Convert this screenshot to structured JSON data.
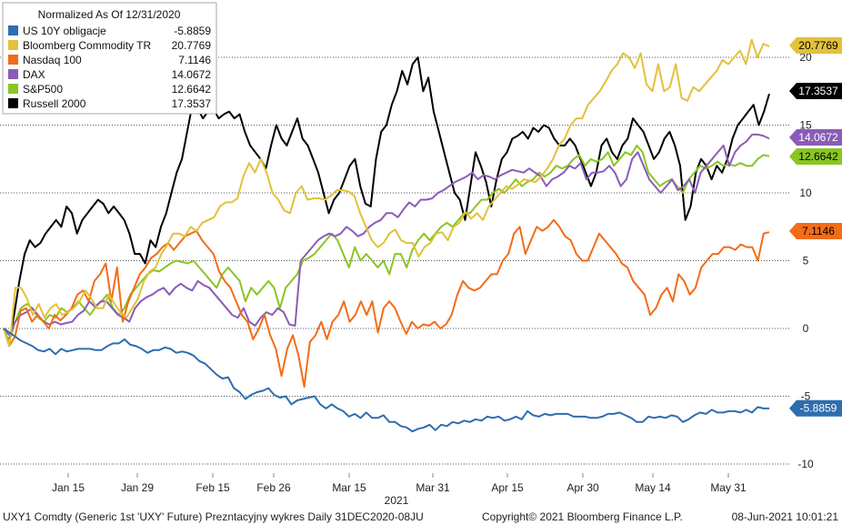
{
  "chart_data": {
    "type": "line",
    "title": "Normalized As Of 12/31/2020",
    "year_label": "2021",
    "x_tick_labels": [
      "Jan 15",
      "Jan 29",
      "Feb 15",
      "Feb 26",
      "Mar 15",
      "Mar 31",
      "Apr 15",
      "Apr 30",
      "May 14",
      "May 31"
    ],
    "y_ticks": [
      20,
      15,
      10,
      5,
      0,
      -5,
      -10
    ],
    "ylim": [
      -10.5,
      22.5
    ],
    "grid": true,
    "legend_position": "top-left",
    "series": [
      {
        "name": "US 10Y obligacje",
        "last": "-5.8859",
        "color": "#2e6db0",
        "tag_text_color": "#ffffff",
        "values": [
          0,
          -0.3,
          -0.6,
          -0.9,
          -1.1,
          -1.3,
          -1.6,
          -1.7,
          -1.5,
          -1.9,
          -1.5,
          -1.7,
          -1.6,
          -1.5,
          -1.5,
          -1.5,
          -1.6,
          -1.6,
          -1.3,
          -1.1,
          -1.1,
          -0.8,
          -1.2,
          -1.3,
          -1.5,
          -1.8,
          -1.6,
          -1.6,
          -1.4,
          -1.5,
          -1.8,
          -1.7,
          -1.8,
          -2.0,
          -2.4,
          -2.6,
          -3.0,
          -3.4,
          -3.7,
          -3.6,
          -4.4,
          -4.7,
          -5.2,
          -4.9,
          -4.7,
          -4.6,
          -4.4,
          -4.9,
          -5.1,
          -5.0,
          -5.6,
          -5.3,
          -5.2,
          -5.1,
          -5.0,
          -5.6,
          -5.9,
          -5.6,
          -5.9,
          -6.1,
          -6.5,
          -6.3,
          -6.6,
          -6.2,
          -6.6,
          -6.6,
          -6.4,
          -6.9,
          -6.9,
          -7.2,
          -7.3,
          -7.6,
          -7.4,
          -7.3,
          -7.1,
          -7.5,
          -7.1,
          -7.2,
          -6.9,
          -7.0,
          -6.8,
          -6.9,
          -6.7,
          -6.8,
          -6.5,
          -6.6,
          -6.5,
          -6.8,
          -6.7,
          -6.5,
          -6.7,
          -6.1,
          -6.4,
          -6.5,
          -6.3,
          -6.4,
          -6.3,
          -6.3,
          -6.3,
          -6.5,
          -6.5,
          -6.5,
          -6.6,
          -6.6,
          -6.5,
          -6.3,
          -6.3,
          -6.2,
          -6.4,
          -6.6,
          -6.9,
          -6.9,
          -6.5,
          -6.6,
          -6.5,
          -6.6,
          -6.4,
          -6.5,
          -6.9,
          -6.7,
          -6.4,
          -6.2,
          -6.3,
          -6.0,
          -6.2,
          -6.2,
          -6.1,
          -6.1,
          -6.2,
          -6.0,
          -6.2,
          -5.8,
          -5.9,
          -5.9
        ]
      },
      {
        "name": "Bloomberg Commodity TR",
        "last": "20.7769",
        "color": "#e2c13b",
        "tag_text_color": "#000000",
        "values": [
          0,
          -1.3,
          3.0,
          3.0,
          2.2,
          1.0,
          1.8,
          0.8,
          1.5,
          1.8,
          1.0,
          1.2,
          1.5,
          2.0,
          2.8,
          2.2,
          1.5,
          1.5,
          2.5,
          1.8,
          1.2,
          0.8,
          1.5,
          2.2,
          3.5,
          4.2,
          4.5,
          5.5,
          6.2,
          7.0,
          7.0,
          6.8,
          7.5,
          7.2,
          7.8,
          8.0,
          8.2,
          9.0,
          9.3,
          9.3,
          9.6,
          11.2,
          12.2,
          11.5,
          12.5,
          11.5,
          10.0,
          9.5,
          8.7,
          8.5,
          10.0,
          10.5,
          9.5,
          9.6,
          9.6,
          9.5,
          9.8,
          10.2,
          10.2,
          10.1,
          9.8,
          8.5,
          7.5,
          6.5,
          6.0,
          6.3,
          7.0,
          7.3,
          6.5,
          6.3,
          6.3,
          5.3,
          6.0,
          6.3,
          7.0,
          7.1,
          6.5,
          7.5,
          7.8,
          8.6,
          8.1,
          8.5,
          8.0,
          9.0,
          9.5,
          10.0,
          10.5,
          10.3,
          10.6,
          11.0,
          10.9,
          10.8,
          11.2,
          11.8,
          12.5,
          13.5,
          14.0,
          15.0,
          15.5,
          15.5,
          16.5,
          17.0,
          17.5,
          18.2,
          19.0,
          19.5,
          20.3,
          20.0,
          19.2,
          20.3,
          18.0,
          17.5,
          19.5,
          17.5,
          17.8,
          19.5,
          17.0,
          16.8,
          17.8,
          17.5,
          18.0,
          18.5,
          19.0,
          19.8,
          19.5,
          20.0,
          20.5,
          19.5,
          21.3,
          20.0,
          21.0,
          20.8
        ]
      },
      {
        "name": "Nasdaq 100",
        "last": "7.1146",
        "color": "#f36c17",
        "tag_text_color": "#000000",
        "values": [
          0,
          -1.3,
          -0.6,
          1.3,
          1.5,
          0.5,
          1.0,
          0.5,
          0.0,
          1.0,
          0.6,
          1.0,
          1.5,
          2.5,
          2.8,
          2.0,
          3.5,
          4.0,
          4.8,
          2.0,
          4.5,
          0.5,
          2.0,
          3.0,
          4.0,
          4.5,
          5.2,
          5.5,
          6.0,
          6.3,
          5.8,
          6.3,
          6.8,
          7.0,
          7.2,
          6.5,
          6.0,
          5.5,
          4.2,
          3.5,
          3.0,
          2.0,
          1.0,
          0.5,
          -0.8,
          0.0,
          1.0,
          -0.5,
          -1.5,
          -3.5,
          -1.5,
          -0.5,
          -2.0,
          -4.3,
          -1.0,
          -0.5,
          0.5,
          -0.8,
          0.5,
          1.0,
          2.0,
          0.5,
          1.0,
          2.0,
          1.0,
          2.0,
          -0.3,
          1.5,
          2.0,
          1.5,
          0.5,
          -0.4,
          0.5,
          0.0,
          0.3,
          0.2,
          0.5,
          0.0,
          0.3,
          1.0,
          2.5,
          3.5,
          3.0,
          2.8,
          3.0,
          3.5,
          4.0,
          4.0,
          5.0,
          5.5,
          7.0,
          7.5,
          5.5,
          6.5,
          7.5,
          7.2,
          7.5,
          8.0,
          7.5,
          6.8,
          6.5,
          5.5,
          5.0,
          5.0,
          6.0,
          7.0,
          6.5,
          6.0,
          5.5,
          4.8,
          4.5,
          3.5,
          3.0,
          2.5,
          1.0,
          1.5,
          2.5,
          3.0,
          2.0,
          4.0,
          3.5,
          2.5,
          3.0,
          4.5,
          5.0,
          5.5,
          5.5,
          6.0,
          6.0,
          5.8,
          6.2,
          6.0,
          6.0,
          5.0,
          7.0,
          7.1
        ]
      },
      {
        "name": "DAX",
        "last": "14.0672",
        "color": "#8a5cb8",
        "tag_text_color": "#ffffff",
        "values": [
          0,
          -0.5,
          0.5,
          1.0,
          1.2,
          1.5,
          1.0,
          0.5,
          0.3,
          0.5,
          0.3,
          0.4,
          0.5,
          1.0,
          1.3,
          2.0,
          1.6,
          2.0,
          2.0,
          1.5,
          1.0,
          0.8,
          0.5,
          1.5,
          2.0,
          2.3,
          2.5,
          2.8,
          3.0,
          2.5,
          3.0,
          3.3,
          3.0,
          2.8,
          3.5,
          3.2,
          3.0,
          2.5,
          2.0,
          1.5,
          1.0,
          0.8,
          1.5,
          0.5,
          0.2,
          0.8,
          1.2,
          1.0,
          1.5,
          1.2,
          0.3,
          0.2,
          5.0,
          5.5,
          6.0,
          6.5,
          6.8,
          7.0,
          6.8,
          7.0,
          7.5,
          7.2,
          6.8,
          7.0,
          7.5,
          7.8,
          8.0,
          8.5,
          8.5,
          8.2,
          8.8,
          9.3,
          9.0,
          9.5,
          9.5,
          9.6,
          10.0,
          10.2,
          10.5,
          10.8,
          11.0,
          11.2,
          11.5,
          11.0,
          11.3,
          11.2,
          11.0,
          11.3,
          11.5,
          11.7,
          11.6,
          11.5,
          11.8,
          11.5,
          11.2,
          10.5,
          11.0,
          11.2,
          11.5,
          12.0,
          11.8,
          12.2,
          11.0,
          11.5,
          11.5,
          11.6,
          12.0,
          11.5,
          10.5,
          11.0,
          12.5,
          13.0,
          12.0,
          11.0,
          10.5,
          10.0,
          10.5,
          11.0,
          10.2,
          10.5,
          11.0,
          10.0,
          11.5,
          12.0,
          12.5,
          13.0,
          13.5,
          12.0,
          13.0,
          13.5,
          13.8,
          14.3,
          14.3,
          14.2,
          14.0
        ]
      },
      {
        "name": "S&P500",
        "last": "12.6642",
        "color": "#8ac522",
        "tag_text_color": "#000000",
        "values": [
          0,
          -1.0,
          0.5,
          1.5,
          1.8,
          1.5,
          0.8,
          0.5,
          1.0,
          0.8,
          1.5,
          1.2,
          1.5,
          2.0,
          1.5,
          1.0,
          1.6,
          2.0,
          2.5,
          1.5,
          1.0,
          1.5,
          2.5,
          3.0,
          3.5,
          4.0,
          4.3,
          4.2,
          4.5,
          4.8,
          5.0,
          4.9,
          4.8,
          5.0,
          4.5,
          4.0,
          3.5,
          3.0,
          4.0,
          4.5,
          4.0,
          3.5,
          2.0,
          3.0,
          2.5,
          3.0,
          3.5,
          3.0,
          1.5,
          3.0,
          3.5,
          4.0,
          5.0,
          5.2,
          5.5,
          6.0,
          6.5,
          7.0,
          6.5,
          5.5,
          4.5,
          6.0,
          5.0,
          5.5,
          5.0,
          4.5,
          5.0,
          4.0,
          5.5,
          5.5,
          4.5,
          5.8,
          6.5,
          7.0,
          6.5,
          7.0,
          7.5,
          7.8,
          7.5,
          8.0,
          8.5,
          8.5,
          9.0,
          9.5,
          9.5,
          10.0,
          10.3,
          10.0,
          10.5,
          11.0,
          10.5,
          10.8,
          11.0,
          11.5,
          11.2,
          11.5,
          12.0,
          11.8,
          12.0,
          12.5,
          12.8,
          12.0,
          12.5,
          12.3,
          12.5,
          13.0,
          12.0,
          12.5,
          13.0,
          12.8,
          13.5,
          13.0,
          11.5,
          11.0,
          10.5,
          10.8,
          11.0,
          10.5,
          10.0,
          11.0,
          11.5,
          12.0,
          11.8,
          12.0,
          12.3,
          12.0,
          12.1,
          12.0,
          12.2,
          12.0,
          12.0,
          12.5,
          12.8,
          12.7
        ]
      },
      {
        "name": "Russell 2000",
        "last": "17.3537",
        "color": "#000000",
        "tag_text_color": "#ffffff",
        "values": [
          0,
          -1.0,
          1.0,
          3.5,
          5.5,
          6.5,
          6.0,
          6.3,
          7.0,
          7.5,
          8.0,
          7.5,
          9.0,
          8.5,
          7.0,
          8.0,
          8.5,
          9.0,
          9.5,
          9.2,
          8.5,
          9.0,
          8.5,
          8.0,
          7.0,
          5.5,
          5.5,
          4.8,
          6.5,
          6.0,
          7.5,
          8.5,
          10.0,
          11.5,
          12.5,
          14.5,
          16.5,
          16.2,
          15.5,
          16.0,
          16.2,
          15.5,
          15.8,
          16.0,
          15.5,
          15.8,
          14.5,
          13.5,
          13.0,
          12.5,
          11.8,
          13.5,
          15.0,
          14.0,
          13.5,
          14.5,
          15.5,
          14.0,
          13.5,
          12.5,
          11.5,
          10.0,
          8.5,
          9.5,
          10.0,
          11.0,
          12.0,
          12.5,
          10.5,
          9.2,
          9.0,
          12.5,
          14.5,
          15.0,
          16.5,
          17.5,
          19.0,
          18.0,
          19.5,
          20.0,
          17.5,
          18.5,
          16.0,
          14.5,
          13.0,
          11.5,
          10.0,
          9.5,
          8.0,
          10.5,
          13.0,
          12.0,
          10.8,
          9.0,
          11.0,
          12.5,
          13.0,
          14.0,
          14.2,
          14.5,
          14.0,
          14.8,
          14.5,
          15.0,
          14.8,
          14.0,
          13.5,
          13.5,
          14.0,
          13.5,
          12.5,
          11.5,
          10.5,
          11.5,
          13.5,
          14.0,
          13.0,
          12.5,
          13.5,
          14.0,
          15.5,
          15.0,
          14.5,
          13.5,
          12.5,
          13.0,
          14.0,
          14.5,
          13.5,
          12.0,
          8.0,
          9.0,
          11.5,
          12.5,
          12.0,
          11.0,
          12.0,
          11.5,
          12.5,
          14.0,
          15.0,
          15.5,
          16.0,
          16.5,
          15.0,
          16.0,
          17.3
        ]
      }
    ]
  },
  "footer": {
    "left": "UXY1 Comdty (Generic 1st 'UXY' Future) Prezntacyjny wykres  Daily 31DEC2020-08JU",
    "middle": "Copyright© 2021 Bloomberg Finance L.P.",
    "right": "08-Jun-2021 10:01:21"
  }
}
